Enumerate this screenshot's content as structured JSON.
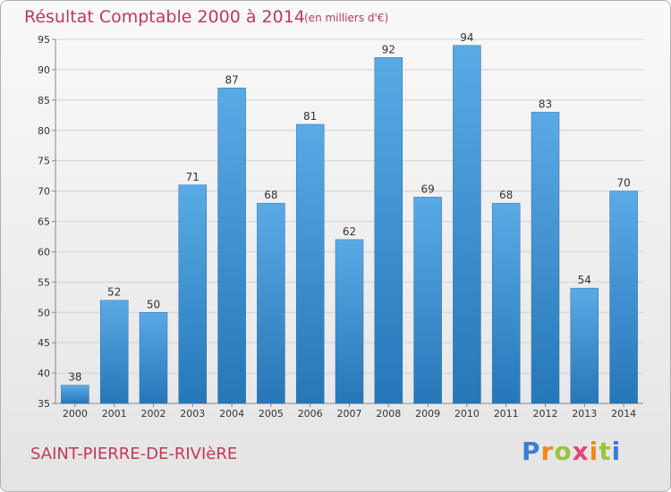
{
  "header": {
    "title": "Résultat Comptable 2000 à 2014",
    "subtitle": "(en milliers d'€)"
  },
  "footer": {
    "commune": "SAINT-PIERRE-DE-RIVIèRE",
    "logo": "Proxiti"
  },
  "colors": {
    "title": "#c03a56",
    "bar_top": "#5aaae6",
    "bar_bottom": "#2677b8"
  },
  "chart_data": {
    "type": "bar",
    "title": "Résultat Comptable 2000 à 2014",
    "subtitle": "(en milliers d'€)",
    "categories": [
      "2000",
      "2001",
      "2002",
      "2003",
      "2004",
      "2005",
      "2006",
      "2007",
      "2008",
      "2009",
      "2010",
      "2011",
      "2012",
      "2013",
      "2014"
    ],
    "values": [
      38,
      52,
      50,
      71,
      87,
      68,
      81,
      62,
      92,
      69,
      94,
      68,
      83,
      54,
      70
    ],
    "ylim": [
      35,
      95
    ],
    "yticks": [
      35,
      40,
      45,
      50,
      55,
      60,
      65,
      70,
      75,
      80,
      85,
      90,
      95
    ],
    "grid": true,
    "legend": "none"
  }
}
